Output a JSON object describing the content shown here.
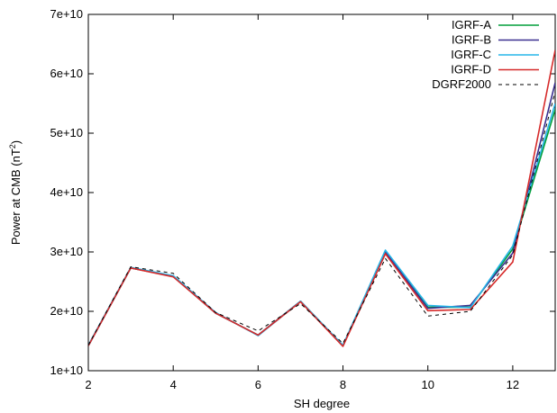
{
  "chart_data": {
    "type": "line",
    "xlabel": "SH degree",
    "ylabel": "Power at CMB (nT",
    "ylabel_sup": "2",
    "ylabel_close": ")",
    "xlim": [
      2,
      13
    ],
    "ylim": [
      10000000000,
      70000000000
    ],
    "xticks": [
      2,
      4,
      6,
      8,
      10,
      12
    ],
    "yticks": [
      {
        "value": 10000000000,
        "label": "1e+10"
      },
      {
        "value": 20000000000,
        "label": "2e+10"
      },
      {
        "value": 30000000000,
        "label": "3e+10"
      },
      {
        "value": 40000000000,
        "label": "4e+10"
      },
      {
        "value": 50000000000,
        "label": "5e+10"
      },
      {
        "value": 60000000000,
        "label": "6e+10"
      },
      {
        "value": 70000000000,
        "label": "7e+10"
      }
    ],
    "grid": false,
    "legend_position": "top-right",
    "x": [
      2,
      3,
      4,
      5,
      6,
      7,
      8,
      9,
      10,
      11,
      12,
      13
    ],
    "series": [
      {
        "name": "IGRF-A",
        "color": "#009e3a",
        "dash": false,
        "values": [
          14200000000,
          27300000000,
          25900000000,
          19700000000,
          16000000000,
          21700000000,
          14200000000,
          30100000000,
          20700000000,
          20700000000,
          30500000000,
          54000000000
        ]
      },
      {
        "name": "IGRF-B",
        "color": "#3a2f8f",
        "dash": false,
        "values": [
          14200000000,
          27300000000,
          25900000000,
          19700000000,
          16000000000,
          21700000000,
          14200000000,
          30000000000,
          20500000000,
          21000000000,
          29800000000,
          58500000000
        ]
      },
      {
        "name": "IGRF-C",
        "color": "#26b5e8",
        "dash": false,
        "values": [
          14300000000,
          27400000000,
          26000000000,
          19800000000,
          15900000000,
          21700000000,
          14300000000,
          30300000000,
          21000000000,
          20600000000,
          31000000000,
          55000000000
        ]
      },
      {
        "name": "IGRF-D",
        "color": "#d62a2a",
        "dash": false,
        "values": [
          14200000000,
          27300000000,
          25800000000,
          19700000000,
          16000000000,
          21600000000,
          14100000000,
          29700000000,
          20100000000,
          20300000000,
          28300000000,
          64000000000
        ]
      },
      {
        "name": "DGRF2000",
        "color": "#000000",
        "dash": true,
        "values": [
          14300000000,
          27500000000,
          26400000000,
          19800000000,
          16700000000,
          21300000000,
          14600000000,
          28900000000,
          19200000000,
          20000000000,
          29500000000,
          57000000000
        ]
      }
    ]
  }
}
